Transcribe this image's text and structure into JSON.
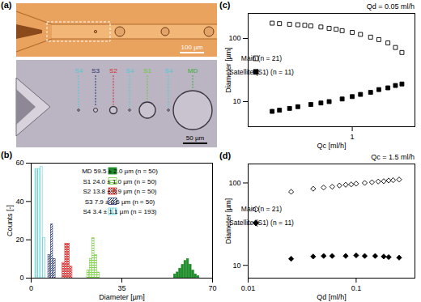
{
  "chart_data": [
    {
      "type": "image",
      "panel": "(a)",
      "scale_bars": [
        "100 µm",
        "50 µm"
      ],
      "labels": [
        {
          "text": "S4",
          "color": "#4fc9d6"
        },
        {
          "text": "S3",
          "color": "#1f2f6e"
        },
        {
          "text": "S2",
          "color": "#d42b2b"
        },
        {
          "text": "S4",
          "color": "#4fc9d6"
        },
        {
          "text": "S1",
          "color": "#66cc33"
        },
        {
          "text": "S4",
          "color": "#4fc9d6"
        },
        {
          "text": "MD",
          "color": "#33b233"
        }
      ]
    },
    {
      "type": "histogram",
      "panel": "(b)",
      "x_label": "Diameter [µm]",
      "y_label": "Counts [-]",
      "xlim": [
        0,
        70
      ],
      "xticks": [
        0,
        35,
        70
      ],
      "ylim": [
        0,
        60
      ],
      "yticks": [
        0,
        20,
        40,
        60
      ],
      "legend": "top-right",
      "series": [
        {
          "name": "MD 59.5 ± 2.0 µm (n = 50)",
          "color": "#1e8c2a",
          "bins": [
            55,
            56,
            57,
            58,
            59,
            60,
            61,
            62,
            63,
            64,
            65
          ],
          "counts": [
            2,
            3,
            5,
            7,
            9,
            10,
            7,
            4,
            2,
            1
          ]
        },
        {
          "name": "S1 24.0 ± 1.0 µm (n = 50)",
          "color": "#74d13c",
          "bins": [
            21.5,
            22.5,
            23.5,
            24.5,
            25.5,
            26.5
          ],
          "counts": [
            4,
            10,
            21,
            12,
            3
          ]
        },
        {
          "name": "S2 13.8 ± 0.9 µm (n = 50)",
          "color": "#d93030",
          "bins": [
            12,
            13,
            14,
            15,
            16
          ],
          "counts": [
            8,
            18,
            18,
            6
          ]
        },
        {
          "name": "S3 7.9 ± 0.6 µm (n = 50)",
          "color": "#1f2f6e",
          "bins": [
            6.5,
            7.5,
            8.5,
            9.5
          ],
          "counts": [
            12,
            28,
            10
          ]
        },
        {
          "name": "S4 3.4 ± 1.1 µm (n = 193)",
          "color": "#5cd0d8",
          "bins": [
            1.5,
            2.5,
            3.5,
            4.5,
            5.5
          ],
          "counts": [
            57,
            57,
            58,
            21
          ]
        }
      ]
    },
    {
      "type": "scatter",
      "panel": "(c)",
      "title": "Qd = 0.05 ml/h",
      "x_label": "Qc [ml/h]",
      "y_label": "Diameter [µm]",
      "log": true,
      "xlim": [
        0.1,
        4
      ],
      "xticks": [
        1
      ],
      "ylim": [
        4,
        250
      ],
      "yticks": [
        10,
        100
      ],
      "legend": "left",
      "series": [
        {
          "name": "Main (n = 21)",
          "marker": "open-square",
          "color": "#000000",
          "x": [
            0.17,
            0.2,
            0.25,
            0.3,
            0.35,
            0.4,
            0.5,
            0.6,
            0.7,
            0.8,
            1.0,
            1.2,
            1.5,
            1.8,
            2.2,
            2.6,
            3.0
          ],
          "values": [
            175,
            172,
            168,
            165,
            162,
            158,
            152,
            145,
            140,
            133,
            125,
            116,
            105,
            96,
            85,
            72,
            60
          ],
          "errors": [
            6,
            6,
            5,
            5,
            5,
            5,
            5,
            5,
            4,
            4,
            4,
            4,
            4,
            4,
            3,
            3,
            3
          ]
        },
        {
          "name": "Satellite (S1) (n = 11)",
          "marker": "square",
          "color": "#000000",
          "x": [
            0.17,
            0.2,
            0.25,
            0.3,
            0.4,
            0.5,
            0.6,
            0.8,
            1.0,
            1.2,
            1.5,
            1.8,
            2.2,
            2.6,
            3.0
          ],
          "values": [
            7.0,
            7.3,
            7.8,
            8.3,
            9.0,
            9.5,
            10.0,
            11.0,
            12.0,
            13.0,
            14.0,
            15.5,
            16.5,
            18.0,
            19.0
          ],
          "errors": [
            0.5,
            0.5,
            0.5,
            0.5,
            0.5,
            0.5,
            0.5,
            0.6,
            0.6,
            0.6,
            0.7,
            0.7,
            0.8,
            0.8,
            0.8
          ]
        }
      ]
    },
    {
      "type": "scatter",
      "panel": "(d)",
      "title": "Qc = 1.5 ml/h",
      "x_label": "Qd [ml/h]",
      "y_label": "Diameter [µm]",
      "log": true,
      "xlim": [
        0.01,
        0.35
      ],
      "xticks": [
        0.01,
        0.1
      ],
      "ylim": [
        7,
        170
      ],
      "yticks": [
        10,
        100
      ],
      "legend": "left",
      "series": [
        {
          "name": "Main (n = 21)",
          "marker": "open-diamond",
          "color": "#000000",
          "x": [
            0.025,
            0.04,
            0.05,
            0.06,
            0.07,
            0.08,
            0.09,
            0.1,
            0.12,
            0.14,
            0.16,
            0.18,
            0.2,
            0.22,
            0.25
          ],
          "values": [
            78,
            85,
            88,
            90,
            93,
            95,
            96,
            98,
            100,
            102,
            104,
            105,
            107,
            108,
            110
          ],
          "errors": [
            4,
            3,
            3,
            3,
            3,
            3,
            3,
            3,
            3,
            3,
            3,
            3,
            3,
            3,
            3
          ]
        },
        {
          "name": "Satellite (S1) (n = 11)",
          "marker": "diamond",
          "color": "#000000",
          "x": [
            0.025,
            0.04,
            0.05,
            0.06,
            0.08,
            0.1,
            0.12,
            0.15,
            0.18,
            0.2,
            0.25
          ],
          "values": [
            12,
            12.8,
            13,
            13,
            13,
            13.2,
            13,
            13,
            12.8,
            12.6,
            12.4
          ],
          "errors": [
            0.8,
            0.5,
            0.5,
            0.5,
            0.5,
            0.5,
            0.5,
            0.5,
            0.5,
            0.5,
            0.5
          ]
        }
      ]
    }
  ]
}
